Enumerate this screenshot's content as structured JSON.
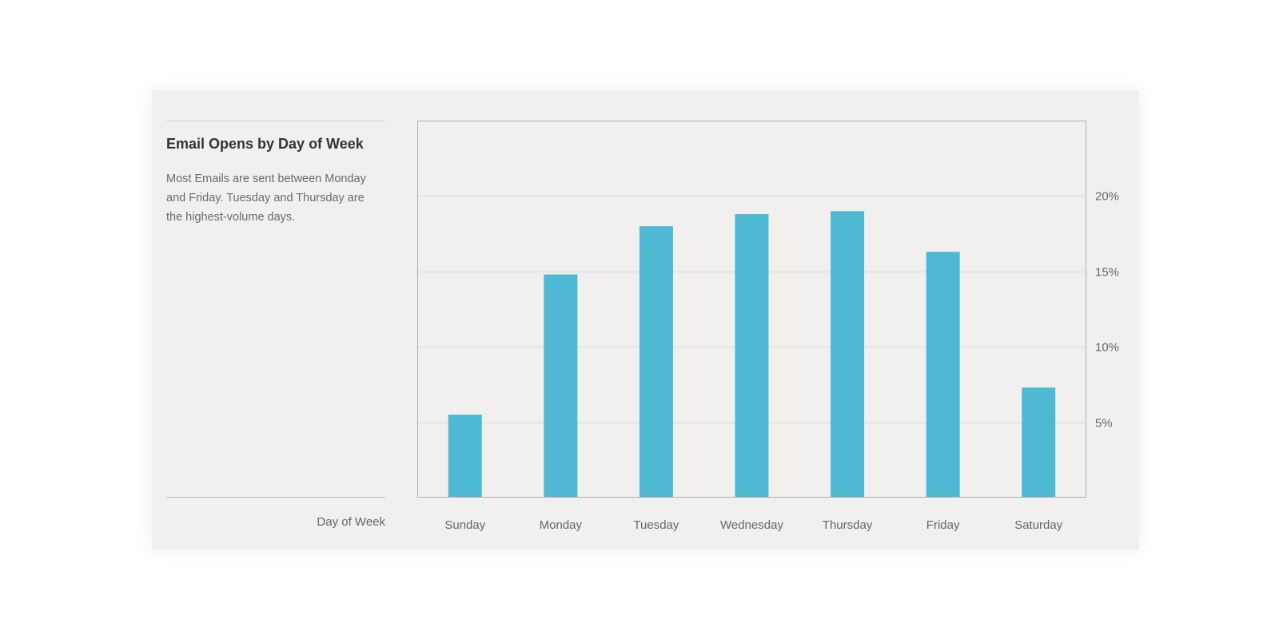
{
  "colors": {
    "bar": "#4fb9d3",
    "grid": "#d9d9d9",
    "axis": "#b0b0b0",
    "card_background": "#f1f0ef"
  },
  "chart_data": {
    "type": "bar",
    "title": "Email Opens by Day of Week",
    "description": "Most Emails are sent between Monday and Friday. Tuesday and Thursday are the highest-volume days.",
    "xlabel": "Day of Week",
    "ylabel": "",
    "categories": [
      "Sunday",
      "Monday",
      "Tuesday",
      "Wednesday",
      "Thursday",
      "Friday",
      "Saturday"
    ],
    "values": [
      5.5,
      14.8,
      18.0,
      18.8,
      19.0,
      16.3,
      7.3
    ],
    "ylim": [
      0,
      25
    ],
    "y_ticks": [
      5,
      10,
      15,
      20
    ],
    "y_tick_labels": [
      "5%",
      "10%",
      "15%",
      "20%"
    ],
    "y_axis_side": "right",
    "grid": true,
    "legend": "none"
  }
}
